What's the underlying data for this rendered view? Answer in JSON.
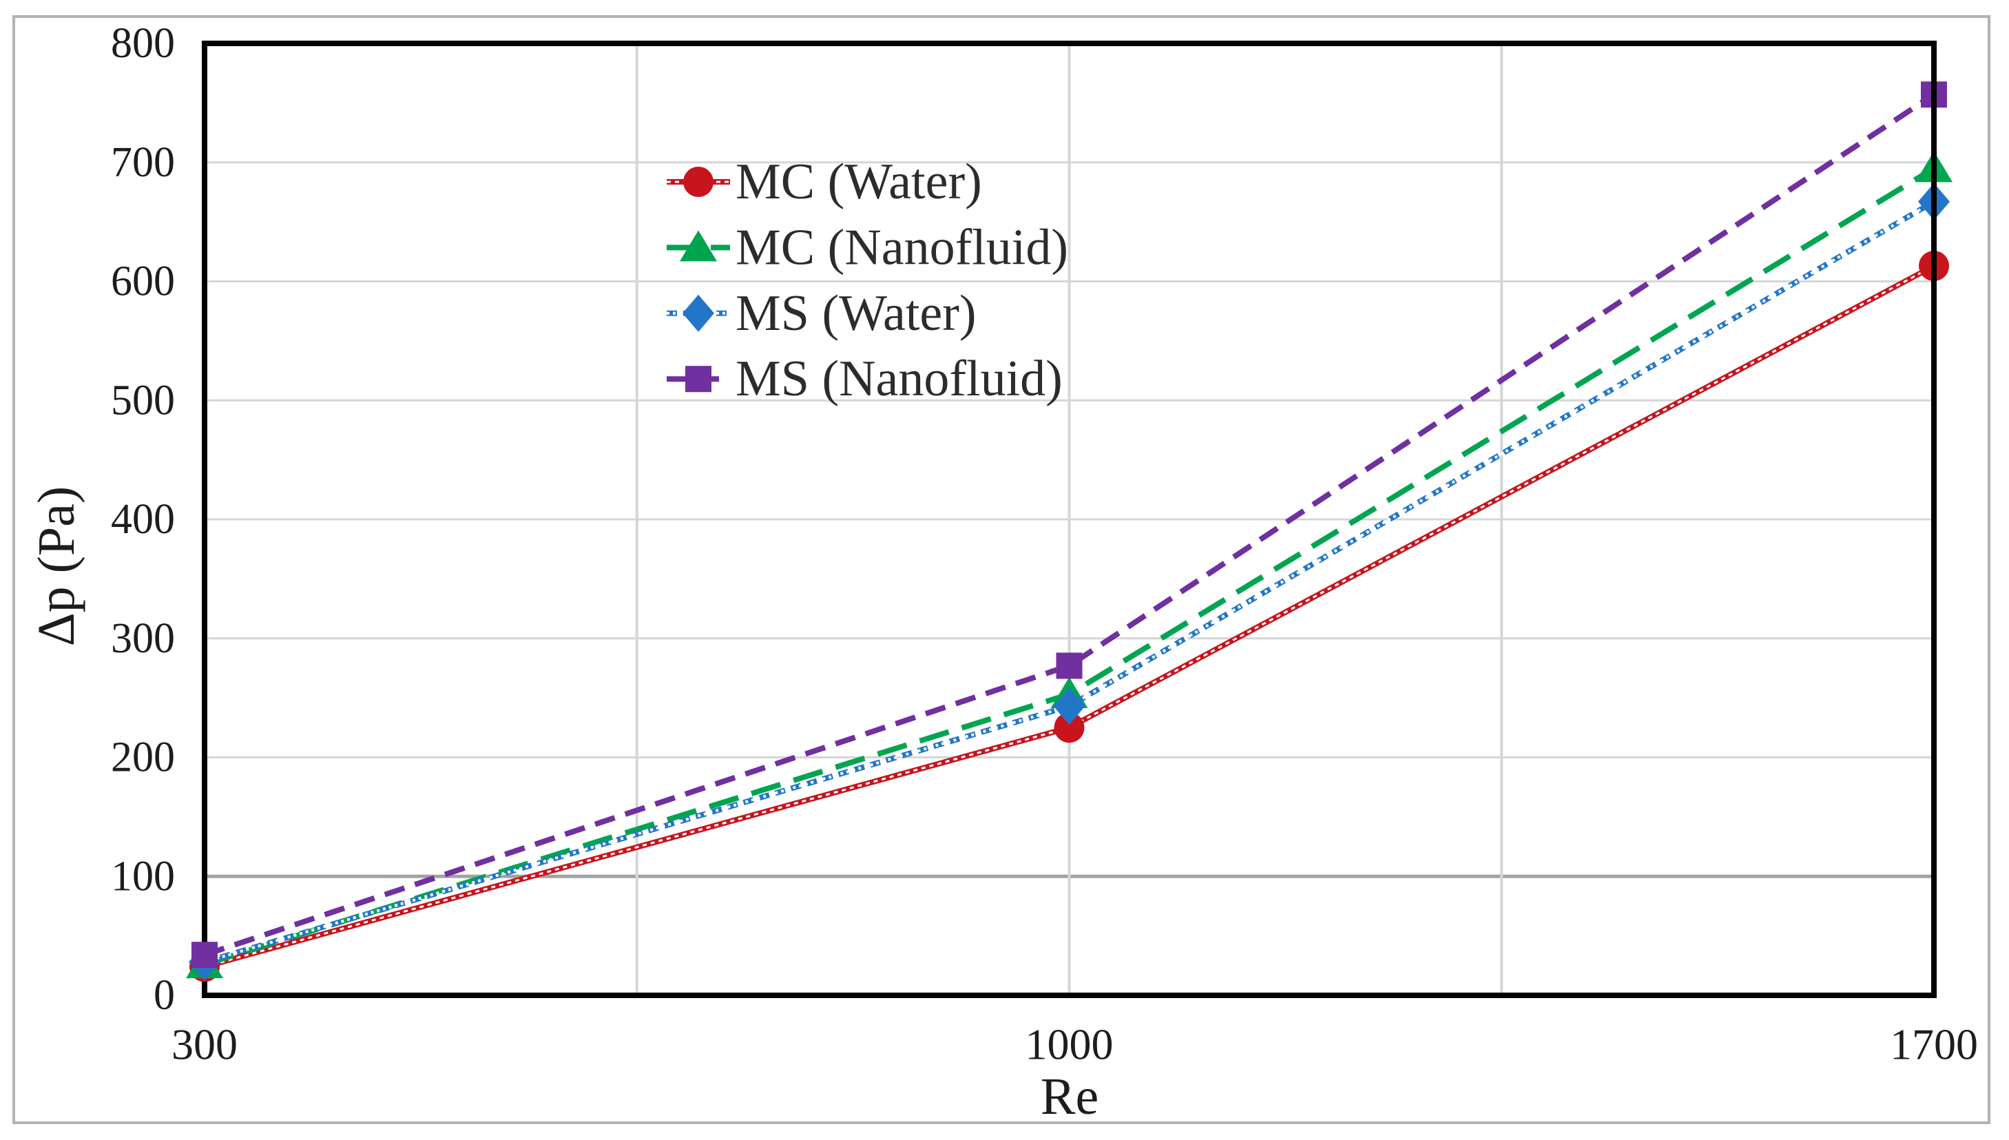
{
  "figure": {
    "background_color": "#ffffff",
    "outer_border_color": "#b3b3b3",
    "plot_frame_color": "#000000",
    "gridline_color": "#d6d6d6",
    "emphasized_gridline_color": "#a3a3a3",
    "text_color": "#1d1d1d"
  },
  "chart_data": {
    "type": "line",
    "title": "",
    "xlabel": "Re",
    "ylabel": "Δp (Pa)",
    "x": [
      300,
      1000,
      1700
    ],
    "x_tick_labels": [
      "300",
      "1000",
      "1700"
    ],
    "xlim": [
      300,
      1700
    ],
    "x_major_unit": 350,
    "x_gridlines": [
      650,
      1000,
      1350
    ],
    "ylim": [
      0,
      800
    ],
    "y_tick_step": 100,
    "y_tick_labels": [
      "0",
      "100",
      "200",
      "300",
      "400",
      "500",
      "600",
      "700",
      "800"
    ],
    "grid": {
      "horizontal": true,
      "vertical": true,
      "emphasized_horizontal_gridline_y": 100
    },
    "legend_position": "inside upper-center-left, no border, vertical list",
    "series": [
      {
        "name": "MC (Water)",
        "color": "#c8141c",
        "marker": "circle",
        "line_style": "double-solid",
        "values": [
          24,
          225,
          613
        ]
      },
      {
        "name": "MC (Nanofluid)",
        "color": "#00a550",
        "marker": "triangle",
        "line_style": "long-dash",
        "values": [
          26,
          253,
          695
        ]
      },
      {
        "name": "MS (Water)",
        "color": "#2176c7",
        "marker": "diamond",
        "line_style": "ring-dash",
        "values": [
          28,
          243,
          667
        ]
      },
      {
        "name": "MS (Nanofluid)",
        "color": "#7030a0",
        "marker": "square",
        "line_style": "dash",
        "values": [
          34,
          277,
          757
        ]
      }
    ]
  }
}
